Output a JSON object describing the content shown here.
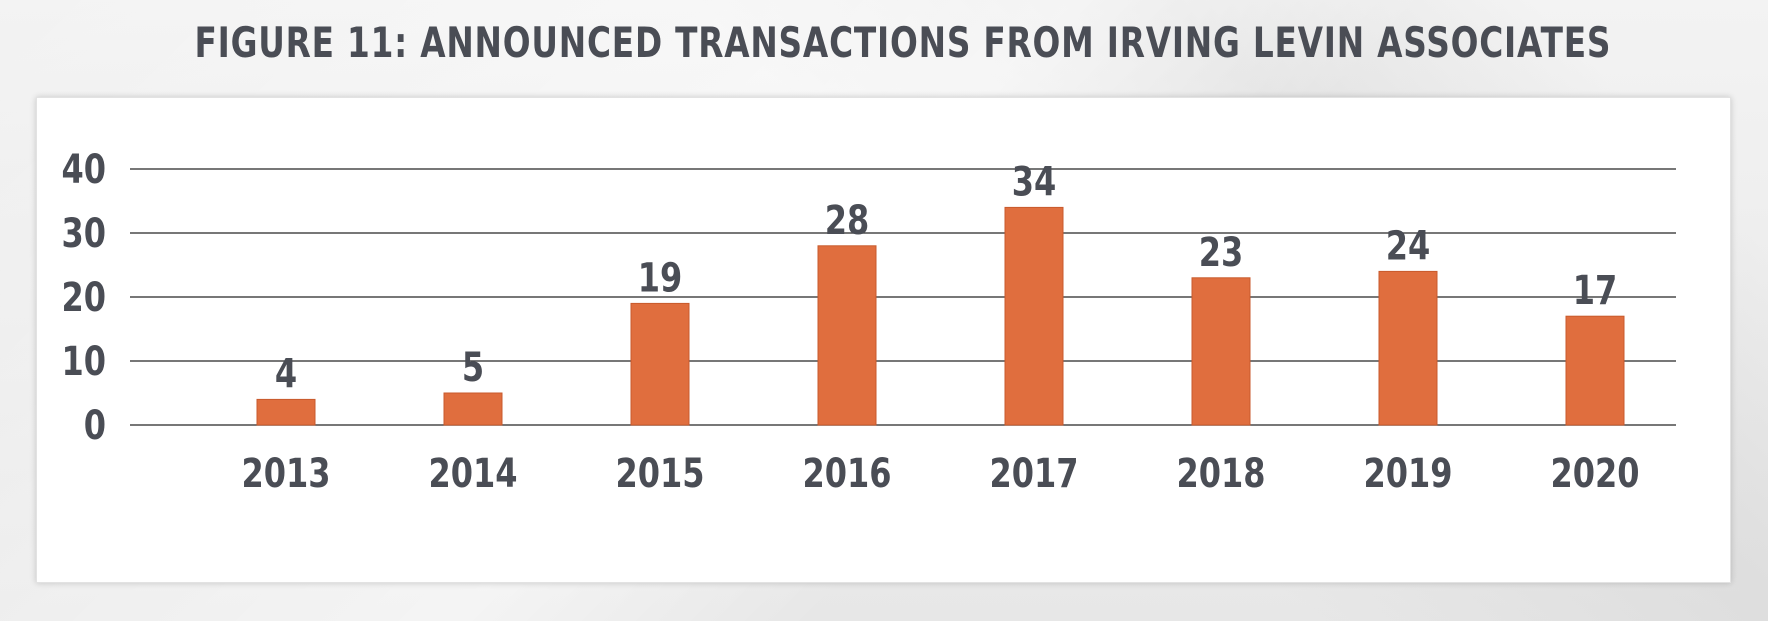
{
  "page": {
    "title": "FIGURE 11: ANNOUNCED TRANSACTIONS FROM IRVING LEVIN ASSOCIATES"
  },
  "chart_data": {
    "type": "bar",
    "title": "FIGURE 11: ANNOUNCED TRANSACTIONS FROM IRVING LEVIN ASSOCIATES",
    "xlabel": "",
    "ylabel": "",
    "categories": [
      "2013",
      "2014",
      "2015",
      "2016",
      "2017",
      "2018",
      "2019",
      "2020"
    ],
    "values": [
      4,
      5,
      19,
      28,
      34,
      23,
      24,
      17
    ],
    "data_labels": [
      "4",
      "5",
      "19",
      "28",
      "34",
      "23",
      "24",
      "17"
    ],
    "ylim": [
      0,
      40
    ],
    "yticks": [
      "0",
      "10",
      "20",
      "30",
      "40"
    ],
    "grid": true,
    "legend": "none",
    "bar_color": "#e06e3e",
    "text_color": "#4a4d55",
    "grid_color": "#4a4a4a"
  }
}
